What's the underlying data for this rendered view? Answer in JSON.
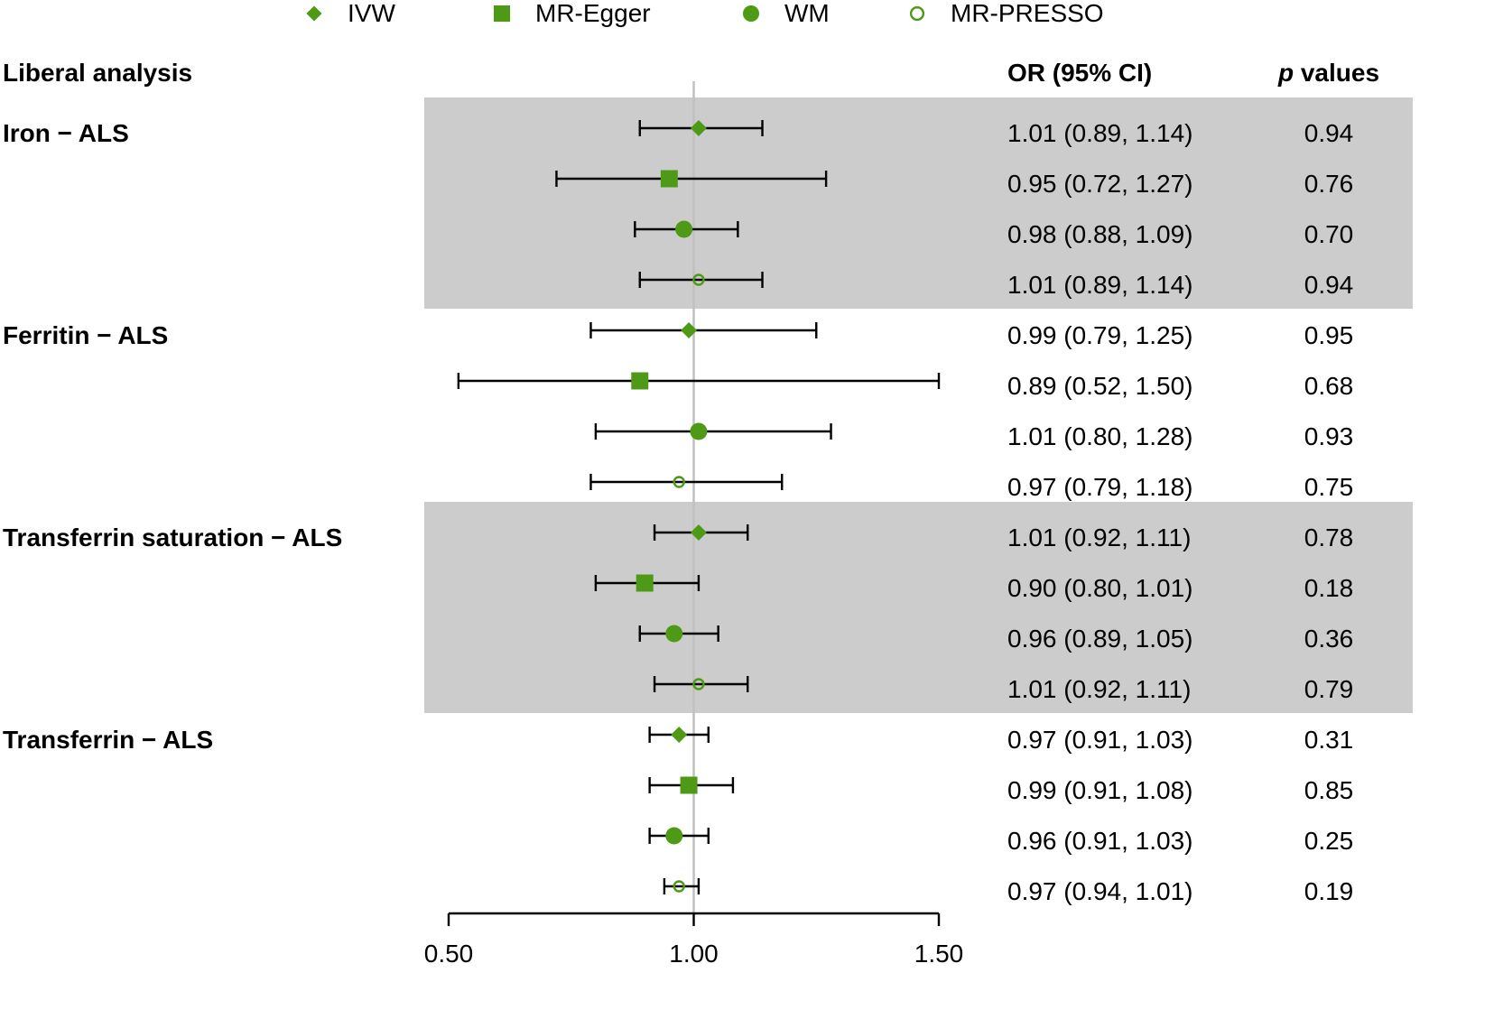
{
  "colors": {
    "marker": "#4e9a17",
    "band": "#cccccc",
    "ref_line": "#c0c0c0",
    "ink": "#000000"
  },
  "legend": [
    {
      "label": "IVW",
      "shape": "diamond"
    },
    {
      "label": "MR-Egger",
      "shape": "square"
    },
    {
      "label": "WM",
      "shape": "circle"
    },
    {
      "label": "MR-PRESSO",
      "shape": "open-circle"
    }
  ],
  "headers": {
    "analysis": "Liberal analysis",
    "or_ci": "OR (95% CI)",
    "p_italic": "p",
    "p_rest": " values"
  },
  "chart_data": {
    "type": "forest",
    "xlabel": "",
    "xlim": [
      0.5,
      1.5
    ],
    "reference": 1.0,
    "x_ticks": [
      "0.50",
      "1.00",
      "1.50"
    ],
    "methods": [
      "IVW",
      "MR-Egger",
      "WM",
      "MR-PRESSO"
    ],
    "groups": [
      {
        "name": "Iron − ALS",
        "shaded": true,
        "rows": [
          {
            "method": "IVW",
            "or": 1.01,
            "lo": 0.89,
            "hi": 1.14,
            "ci_text": "1.01 (0.89, 1.14)",
            "p": "0.94"
          },
          {
            "method": "MR-Egger",
            "or": 0.95,
            "lo": 0.72,
            "hi": 1.27,
            "ci_text": "0.95 (0.72, 1.27)",
            "p": "0.76"
          },
          {
            "method": "WM",
            "or": 0.98,
            "lo": 0.88,
            "hi": 1.09,
            "ci_text": "0.98 (0.88, 1.09)",
            "p": "0.70"
          },
          {
            "method": "MR-PRESSO",
            "or": 1.01,
            "lo": 0.89,
            "hi": 1.14,
            "ci_text": "1.01 (0.89, 1.14)",
            "p": "0.94"
          }
        ]
      },
      {
        "name": "Ferritin − ALS",
        "shaded": false,
        "rows": [
          {
            "method": "IVW",
            "or": 0.99,
            "lo": 0.79,
            "hi": 1.25,
            "ci_text": "0.99 (0.79, 1.25)",
            "p": "0.95"
          },
          {
            "method": "MR-Egger",
            "or": 0.89,
            "lo": 0.52,
            "hi": 1.5,
            "ci_text": "0.89 (0.52, 1.50)",
            "p": "0.68"
          },
          {
            "method": "WM",
            "or": 1.01,
            "lo": 0.8,
            "hi": 1.28,
            "ci_text": "1.01 (0.80, 1.28)",
            "p": "0.93"
          },
          {
            "method": "MR-PRESSO",
            "or": 0.97,
            "lo": 0.79,
            "hi": 1.18,
            "ci_text": "0.97 (0.79, 1.18)",
            "p": "0.75"
          }
        ]
      },
      {
        "name": "Transferrin saturation − ALS",
        "shaded": true,
        "rows": [
          {
            "method": "IVW",
            "or": 1.01,
            "lo": 0.92,
            "hi": 1.11,
            "ci_text": "1.01 (0.92, 1.11)",
            "p": "0.78"
          },
          {
            "method": "MR-Egger",
            "or": 0.9,
            "lo": 0.8,
            "hi": 1.01,
            "ci_text": "0.90 (0.80, 1.01)",
            "p": "0.18"
          },
          {
            "method": "WM",
            "or": 0.96,
            "lo": 0.89,
            "hi": 1.05,
            "ci_text": "0.96 (0.89, 1.05)",
            "p": "0.36"
          },
          {
            "method": "MR-PRESSO",
            "or": 1.01,
            "lo": 0.92,
            "hi": 1.11,
            "ci_text": "1.01 (0.92, 1.11)",
            "p": "0.79"
          }
        ]
      },
      {
        "name": "Transferrin − ALS",
        "shaded": false,
        "rows": [
          {
            "method": "IVW",
            "or": 0.97,
            "lo": 0.91,
            "hi": 1.03,
            "ci_text": "0.97 (0.91, 1.03)",
            "p": "0.31"
          },
          {
            "method": "MR-Egger",
            "or": 0.99,
            "lo": 0.91,
            "hi": 1.08,
            "ci_text": "0.99 (0.91, 1.08)",
            "p": "0.85"
          },
          {
            "method": "WM",
            "or": 0.96,
            "lo": 0.91,
            "hi": 1.03,
            "ci_text": "0.96 (0.91, 1.03)",
            "p": "0.25"
          },
          {
            "method": "MR-PRESSO",
            "or": 0.97,
            "lo": 0.94,
            "hi": 1.01,
            "ci_text": "0.97 (0.94, 1.01)",
            "p": "0.19"
          }
        ]
      }
    ]
  }
}
